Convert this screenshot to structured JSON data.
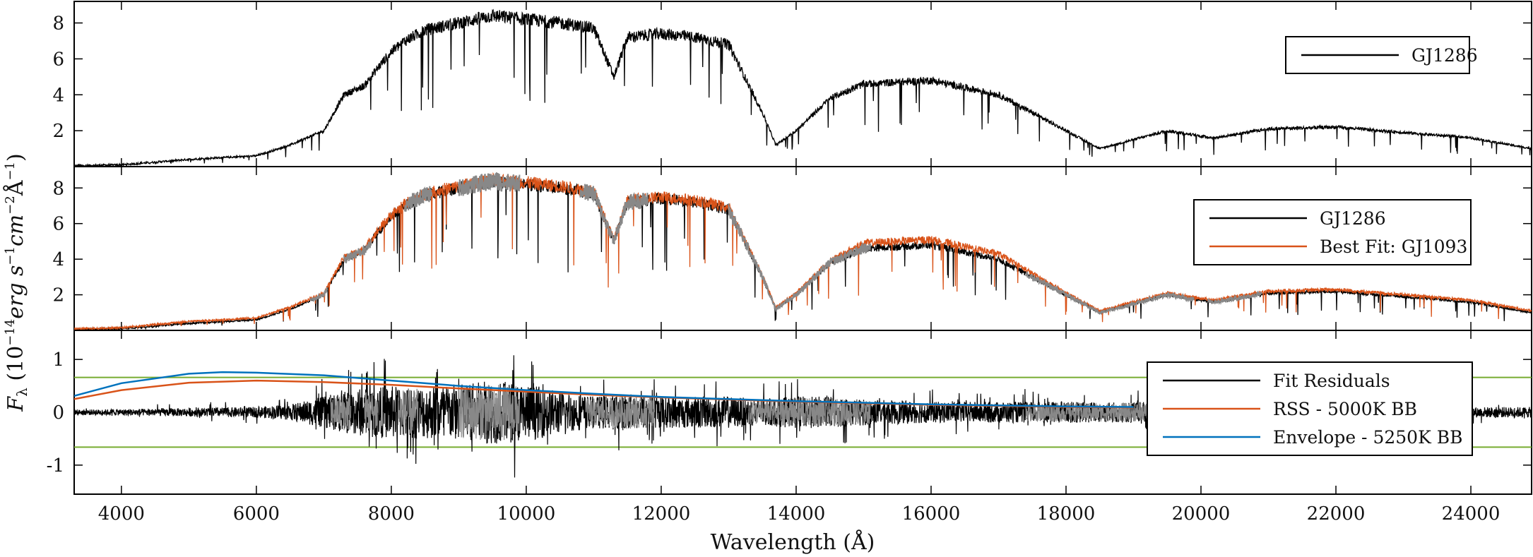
{
  "chart_data": [
    {
      "type": "line",
      "panel": "top",
      "xlim": [
        3300,
        24900
      ],
      "ylim": [
        0,
        9.2
      ],
      "yticks": [
        2,
        4,
        6,
        8
      ],
      "series": [
        {
          "name": "GJ1286",
          "color": "#000000",
          "x": [
            3300,
            4000,
            5000,
            6000,
            6500,
            7000,
            7300,
            7600,
            7800,
            8000,
            8200,
            8500,
            9000,
            9500,
            10000,
            10500,
            11000,
            11300,
            11500,
            12000,
            12500,
            13000,
            13500,
            13700,
            14000,
            14500,
            15000,
            16000,
            17000,
            18000,
            18500,
            19000,
            19500,
            20000,
            20200,
            21000,
            22000,
            23000,
            24000,
            24900
          ],
          "y": [
            0.05,
            0.1,
            0.4,
            0.6,
            1.2,
            2.0,
            4.0,
            4.5,
            5.5,
            6.4,
            7.0,
            7.6,
            8.0,
            8.4,
            8.2,
            8.0,
            7.7,
            5.0,
            7.2,
            7.4,
            7.2,
            6.8,
            3.0,
            1.2,
            2.0,
            3.8,
            4.6,
            4.8,
            4.0,
            2.0,
            1.0,
            1.5,
            2.0,
            1.7,
            1.6,
            2.1,
            2.2,
            1.9,
            1.6,
            1.0
          ]
        }
      ]
    },
    {
      "type": "line",
      "panel": "middle",
      "xlim": [
        3300,
        24900
      ],
      "ylim": [
        0,
        9.2
      ],
      "yticks": [
        2,
        4,
        6,
        8
      ],
      "series": [
        {
          "name": "GJ1286",
          "color": "#000000",
          "x": [
            3300,
            4000,
            5000,
            6000,
            6500,
            7000,
            7300,
            7600,
            7800,
            8000,
            8200,
            8500,
            9000,
            9500,
            10000,
            10500,
            11000,
            11300,
            11500,
            12000,
            12500,
            13000,
            13500,
            13700,
            14000,
            14500,
            15000,
            16000,
            17000,
            18000,
            18500,
            19000,
            19500,
            20000,
            20200,
            21000,
            22000,
            23000,
            24000,
            24900
          ],
          "y": [
            0.05,
            0.1,
            0.4,
            0.6,
            1.2,
            2.0,
            4.0,
            4.5,
            5.5,
            6.4,
            7.0,
            7.6,
            8.0,
            8.4,
            8.2,
            8.0,
            7.7,
            5.0,
            7.2,
            7.4,
            7.2,
            6.8,
            3.0,
            1.2,
            2.0,
            3.8,
            4.6,
            4.8,
            4.0,
            2.0,
            1.0,
            1.5,
            2.0,
            1.7,
            1.6,
            2.1,
            2.2,
            1.9,
            1.6,
            1.0
          ]
        },
        {
          "name": "Best Fit: GJ1093",
          "color": "#d95319",
          "x": [
            3300,
            4000,
            5000,
            6000,
            6500,
            7000,
            7300,
            7600,
            7800,
            8000,
            8200,
            8500,
            9000,
            9500,
            10000,
            10500,
            11000,
            11300,
            11500,
            12000,
            12500,
            13000,
            13500,
            13700,
            14000,
            14500,
            15000,
            16000,
            17000,
            18000,
            18500,
            19000,
            19500,
            20000,
            20200,
            21000,
            22000,
            23000,
            24000,
            24900
          ],
          "y": [
            0.08,
            0.15,
            0.5,
            0.7,
            1.3,
            2.1,
            4.1,
            4.6,
            5.6,
            6.5,
            7.1,
            7.7,
            8.1,
            8.5,
            8.3,
            8.1,
            7.8,
            5.1,
            7.3,
            7.5,
            7.3,
            6.9,
            3.1,
            1.3,
            2.1,
            3.9,
            4.9,
            5.1,
            4.3,
            2.1,
            1.1,
            1.6,
            2.1,
            1.8,
            1.7,
            2.2,
            2.3,
            2.0,
            1.7,
            1.1
          ]
        }
      ]
    },
    {
      "type": "line",
      "panel": "bottom",
      "xlim": [
        3300,
        24900
      ],
      "ylim": [
        -1.55,
        1.55
      ],
      "yticks": [
        -1,
        0,
        1
      ],
      "xticks": [
        4000,
        6000,
        8000,
        10000,
        12000,
        14000,
        16000,
        18000,
        20000,
        22000,
        24000
      ],
      "thresholds": [
        0.66,
        -0.66
      ],
      "threshold_color": "#77ac30",
      "series": [
        {
          "name": "Fit Residuals",
          "color": "#000000",
          "x": [
            3300,
            4000,
            5000,
            6000,
            6500,
            7000,
            7500,
            8000,
            8500,
            9000,
            9500,
            10000,
            10500,
            11000,
            11500,
            12000,
            12500,
            13000,
            13500,
            14000,
            14500,
            15000,
            16000,
            17000,
            18000,
            19000,
            20000,
            21000,
            22000,
            23000,
            24000,
            24900
          ],
          "y": [
            0,
            0,
            0,
            0,
            0,
            0,
            0,
            0,
            0,
            0,
            0,
            0,
            0,
            0,
            0,
            0,
            0,
            0,
            0,
            0,
            0,
            0,
            0,
            0,
            0,
            0,
            0,
            0,
            0,
            0,
            0,
            0
          ],
          "spread": [
            0.05,
            0.06,
            0.08,
            0.1,
            0.15,
            0.3,
            0.45,
            0.5,
            0.5,
            0.55,
            0.6,
            0.55,
            0.4,
            0.3,
            0.35,
            0.3,
            0.3,
            0.3,
            0.25,
            0.3,
            0.3,
            0.25,
            0.2,
            0.2,
            0.2,
            0.2,
            0.15,
            0.1,
            0.1,
            0.1,
            0.1,
            0.1
          ]
        },
        {
          "name": "RSS - 5000K BB",
          "color": "#d95319",
          "x": [
            3300,
            4000,
            5000,
            6000,
            7000,
            8000,
            9000,
            10000,
            11000,
            12000,
            13000,
            14000,
            15000,
            16000,
            17000,
            18000,
            19000
          ],
          "y": [
            0.25,
            0.42,
            0.56,
            0.6,
            0.57,
            0.52,
            0.45,
            0.39,
            0.33,
            0.28,
            0.24,
            0.2,
            0.17,
            0.14,
            0.12,
            0.1,
            0.09
          ]
        },
        {
          "name": "Envelope - 5250K BB",
          "color": "#0072bd",
          "x": [
            3300,
            4000,
            5000,
            5500,
            6000,
            7000,
            8000,
            9000,
            10000,
            11000,
            12000,
            13000,
            14000,
            15000,
            16000,
            17000,
            18000,
            19000
          ],
          "y": [
            0.31,
            0.55,
            0.73,
            0.76,
            0.75,
            0.7,
            0.6,
            0.5,
            0.42,
            0.35,
            0.29,
            0.25,
            0.21,
            0.18,
            0.15,
            0.13,
            0.11,
            0.1
          ]
        }
      ]
    }
  ],
  "labels": {
    "ylabel": "F_λ (10^-14 erg s^-1 cm^-2 Å^-1)",
    "xlabel": "Wavelength (Å)"
  }
}
